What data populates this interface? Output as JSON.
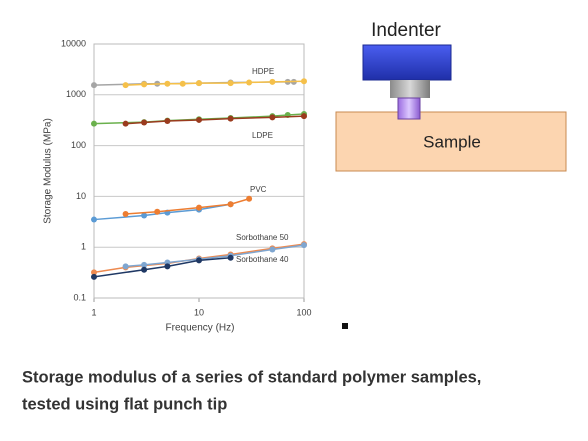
{
  "chart_data": {
    "type": "line",
    "xlabel": "Frequency (Hz)",
    "ylabel": "Storage Modulus (MPa)",
    "xscale": "log",
    "yscale": "log",
    "xlim": [
      1,
      100
    ],
    "xticks": [
      1,
      10,
      100
    ],
    "ylim": [
      0.1,
      10000
    ],
    "yticks": [
      0.1,
      1,
      10,
      100,
      1000,
      10000
    ],
    "grid": true,
    "annotations": [
      "HDPE",
      "LDPE",
      "PVC",
      "Sorbothane 50",
      "Sorbothane 40"
    ],
    "series": [
      {
        "color": "#a5a5a5",
        "x": [
          1,
          3,
          4,
          10,
          20,
          70,
          80
        ],
        "values": [
          1550,
          1650,
          1650,
          1700,
          1750,
          1800,
          1800
        ]
      },
      {
        "color": "#f5c04a",
        "x": [
          2,
          3,
          5,
          7,
          10,
          20,
          30,
          50,
          100
        ],
        "values": [
          1550,
          1600,
          1650,
          1650,
          1700,
          1700,
          1750,
          1800,
          1850
        ]
      },
      {
        "color": "#6ab04c",
        "x": [
          1,
          3,
          5,
          10,
          20,
          50,
          70,
          100
        ],
        "values": [
          270,
          290,
          310,
          330,
          350,
          380,
          400,
          420
        ]
      },
      {
        "color": "#9a3b1e",
        "x": [
          2,
          3,
          5,
          10,
          20,
          50,
          100
        ],
        "values": [
          270,
          285,
          305,
          320,
          340,
          360,
          380
        ]
      },
      {
        "color": "#5b9bd5",
        "x": [
          1,
          3,
          5,
          10,
          20
        ],
        "values": [
          3.5,
          4.2,
          4.8,
          5.5,
          7
        ]
      },
      {
        "color": "#ed7d31",
        "x": [
          2,
          4,
          10,
          20,
          30
        ],
        "values": [
          4.5,
          5,
          6,
          7,
          9
        ]
      },
      {
        "color": "#ed8a50",
        "x": [
          1,
          2,
          5,
          10,
          20,
          50,
          100
        ],
        "values": [
          0.32,
          0.4,
          0.48,
          0.6,
          0.72,
          0.95,
          1.15
        ]
      },
      {
        "color": "#7fa6d0",
        "x": [
          2,
          3,
          5,
          10,
          20,
          50,
          100
        ],
        "values": [
          0.42,
          0.45,
          0.5,
          0.58,
          0.68,
          0.9,
          1.1
        ]
      },
      {
        "color": "#1f3864",
        "x": [
          1,
          3,
          5,
          10,
          20
        ],
        "values": [
          0.26,
          0.36,
          0.42,
          0.55,
          0.62
        ]
      }
    ]
  },
  "diagram": {
    "indenter": "Indenter",
    "sample": "Sample"
  },
  "caption": [
    "Storage modulus of a series of standard polymer samples,",
    "tested using flat punch tip"
  ]
}
